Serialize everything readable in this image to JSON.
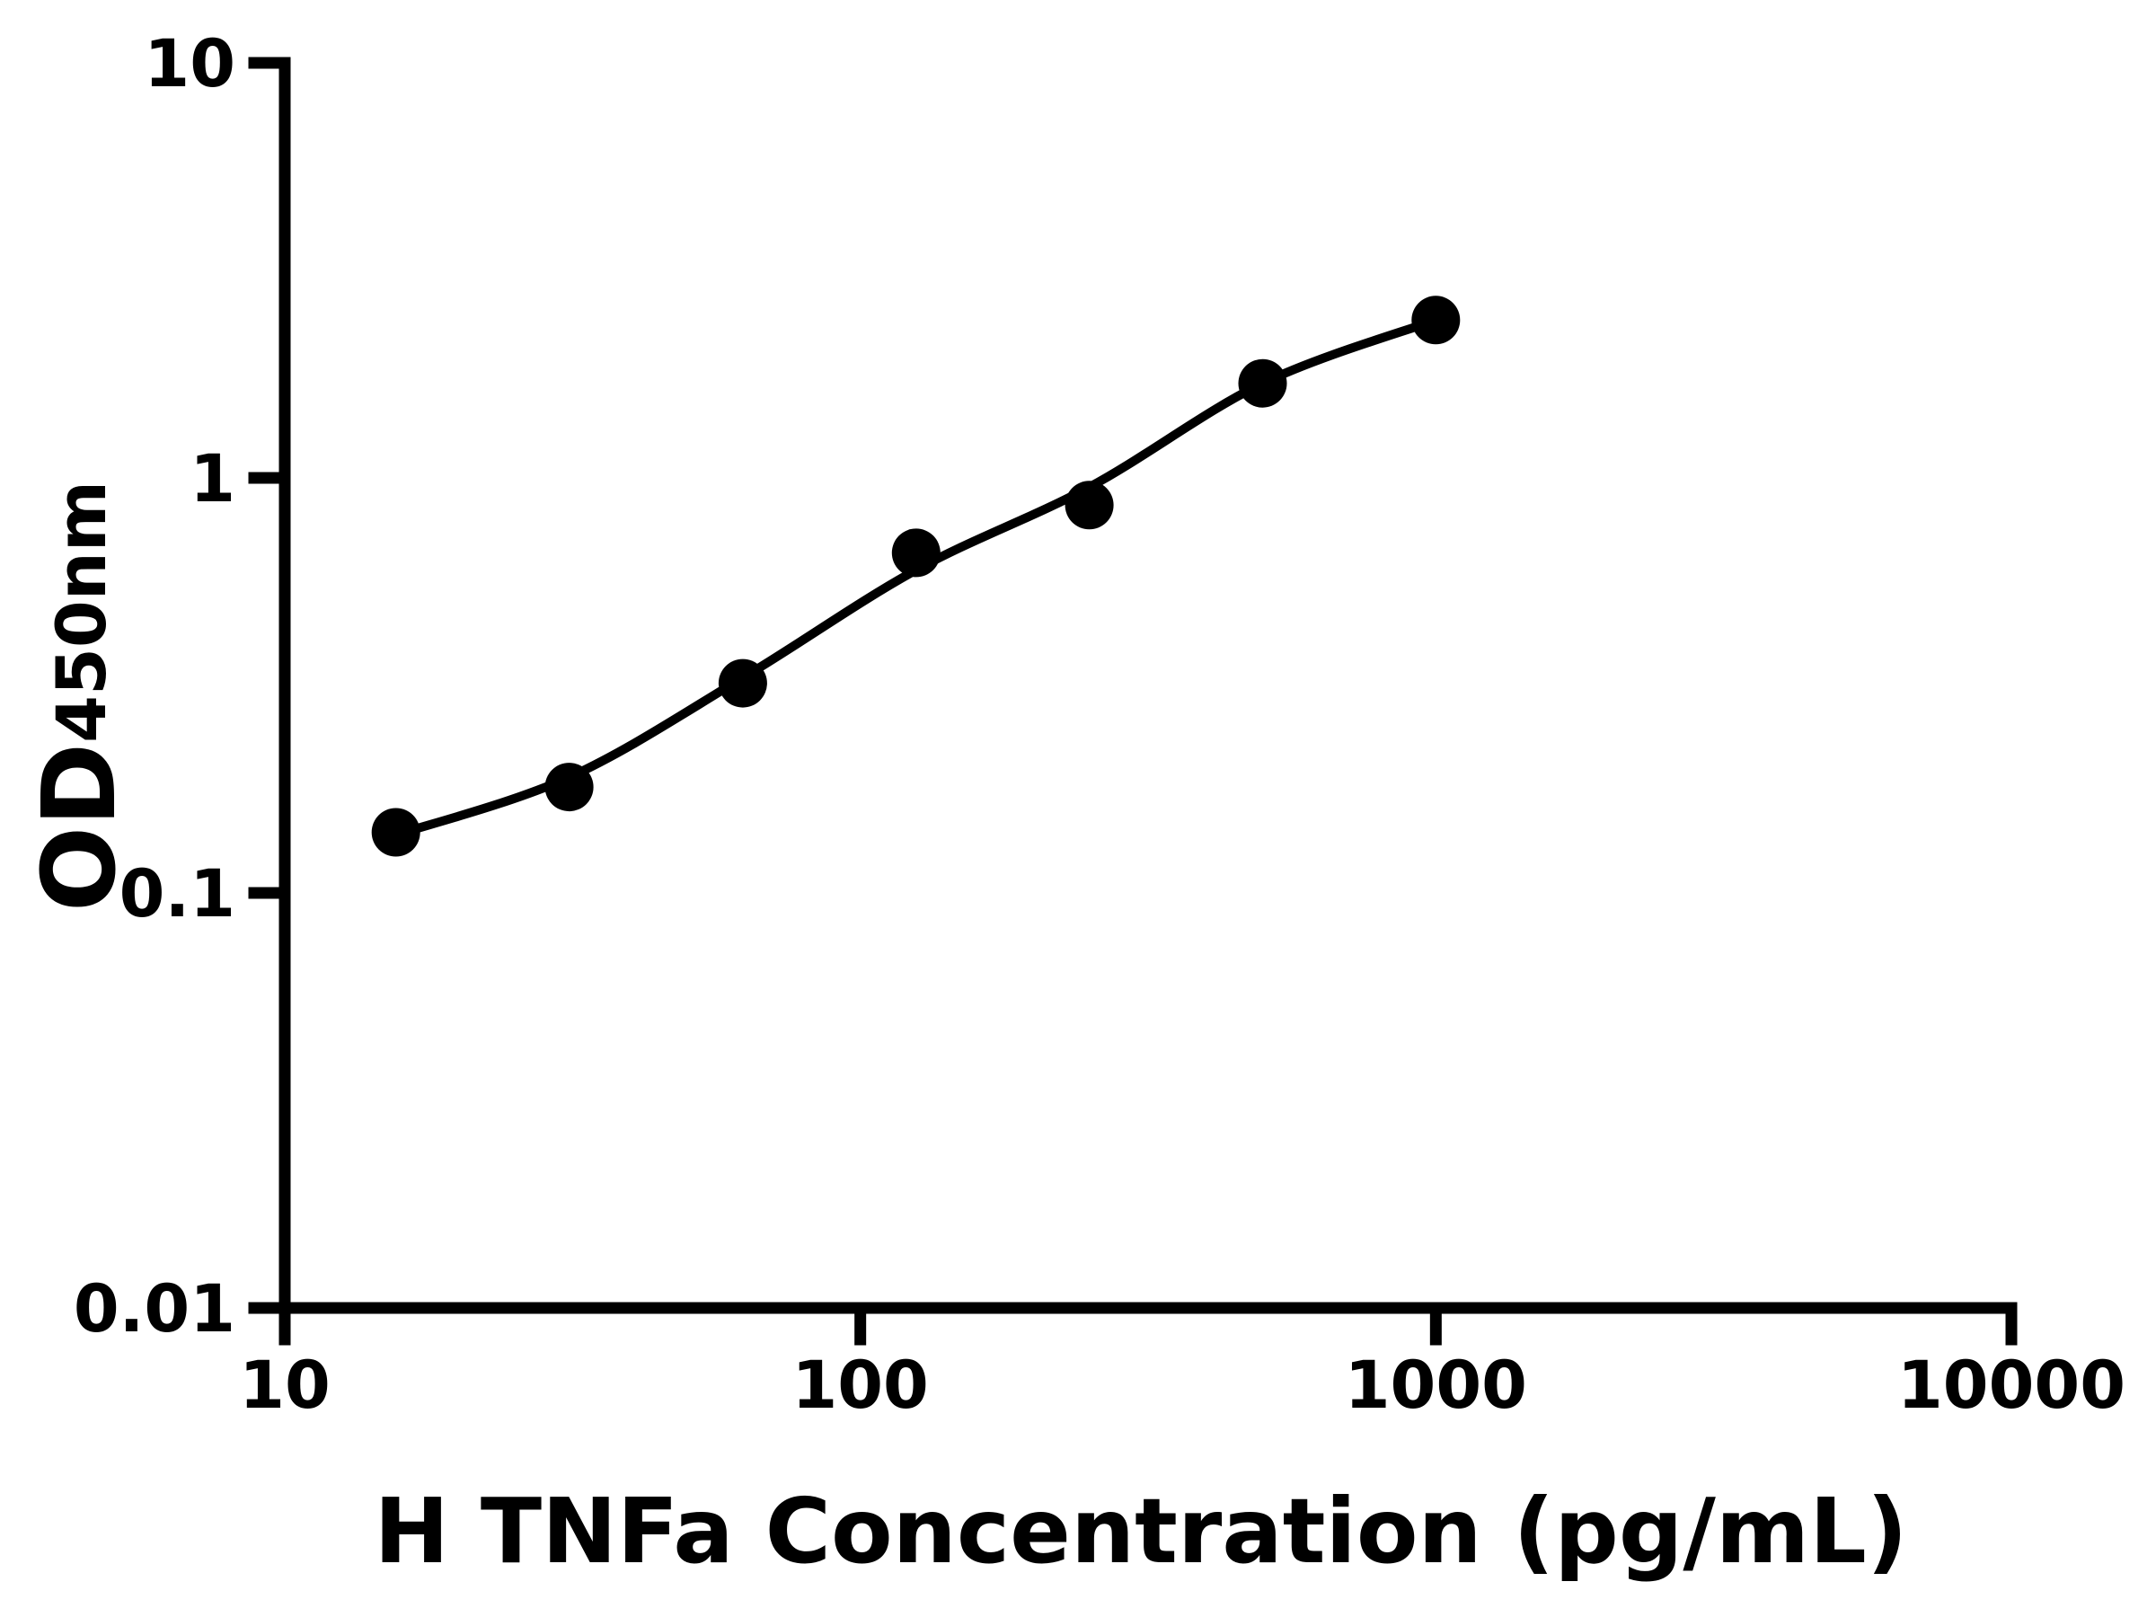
{
  "figure": {
    "background_color": "#ffffff",
    "foreground_color": "#000000"
  },
  "chart": {
    "x_axis": {
      "label": "H TNFa Concentration (pg/mL)",
      "scale": "log10",
      "min": 10,
      "max": 10000,
      "tick_values": [
        10,
        100,
        1000,
        10000
      ],
      "tick_labels": [
        "10",
        "100",
        "1000",
        "10000"
      ]
    },
    "y_axis": {
      "label_main": "OD",
      "label_sub": "450nm",
      "label_full": "OD450nm",
      "scale": "log10",
      "min": 0.01,
      "max": 10,
      "tick_values": [
        10,
        1,
        0.1,
        0.01
      ],
      "tick_labels": [
        "10",
        "1",
        "0.1",
        "0.01"
      ]
    }
  },
  "chart_data": {
    "type": "scatter",
    "title": "",
    "xlabel": "H TNFa Concentration (pg/mL)",
    "ylabel": "OD450nm",
    "xscale": "log",
    "yscale": "log",
    "xlim": [
      10,
      10000
    ],
    "ylim": [
      0.01,
      10
    ],
    "grid": false,
    "legend": false,
    "series": [
      {
        "name": "standard-curve-points",
        "marker": "filled-circle",
        "color": "#000000",
        "x": [
          15.6,
          31.2,
          62.5,
          125,
          250,
          500,
          1000
        ],
        "y": [
          0.14,
          0.18,
          0.32,
          0.66,
          0.86,
          1.69,
          2.4
        ]
      }
    ],
    "fit_line": {
      "name": "four-parameter-logistic-fit",
      "color": "#000000",
      "x": [
        15.6,
        31.2,
        62.5,
        125,
        250,
        500,
        1000
      ],
      "y": [
        0.138,
        0.19,
        0.33,
        0.6,
        0.95,
        1.69,
        2.4
      ]
    }
  }
}
